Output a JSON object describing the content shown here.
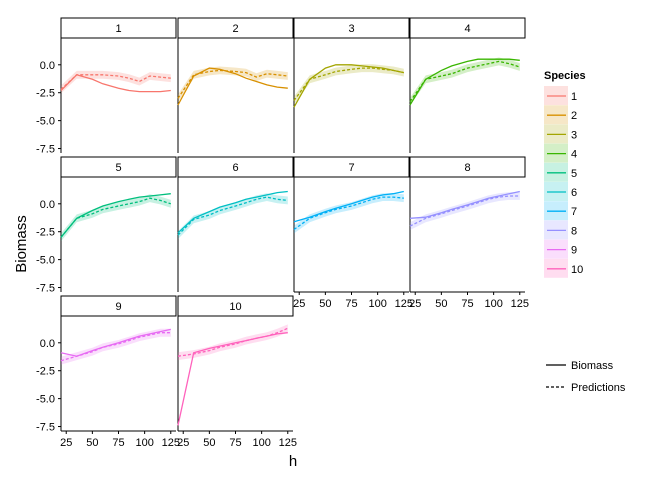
{
  "chart_data": {
    "type": "line",
    "xlabel": "h",
    "ylabel": "Biomass",
    "xlim": [
      20,
      130
    ],
    "ylim": [
      -7.9,
      2.4
    ],
    "x_ticks": [
      25,
      50,
      75,
      100,
      125
    ],
    "y_ticks": [
      0,
      -2.5,
      -5,
      -7.5
    ],
    "y_tick_labels": [
      "0.0",
      "-2.5",
      "-5.0",
      "-7.5"
    ],
    "legend_species_title": "Species",
    "legend_species": [
      "1",
      "2",
      "3",
      "4",
      "5",
      "6",
      "7",
      "8",
      "9",
      "10"
    ],
    "colors": [
      "#F8766D",
      "#D89000",
      "#A3A500",
      "#39B600",
      "#00BF7D",
      "#00BFC4",
      "#00B0F6",
      "#9590FF",
      "#E76BF3",
      "#FF62BC"
    ],
    "legend_linetype": [
      {
        "label": "Biomass",
        "dash": "solid"
      },
      {
        "label": "Predictions",
        "dash": "dotted"
      }
    ],
    "x": [
      20,
      35,
      50,
      60,
      75,
      85,
      95,
      105,
      115,
      125
    ],
    "panels": [
      {
        "label": "1",
        "biomass": [
          -2.3,
          -0.9,
          -1.3,
          -1.7,
          -2.1,
          -2.3,
          -2.4,
          -2.4,
          -2.4,
          -2.3
        ],
        "predictions": [
          -2.2,
          -0.9,
          -0.9,
          -0.9,
          -1.0,
          -1.2,
          -1.5,
          -1.0,
          -1.1,
          -1.2
        ]
      },
      {
        "label": "2",
        "biomass": [
          -3.6,
          -1.0,
          -0.3,
          -0.4,
          -0.8,
          -1.2,
          -1.5,
          -1.8,
          -2.0,
          -2.1
        ],
        "predictions": [
          -3.0,
          -0.9,
          -0.6,
          -0.5,
          -0.6,
          -0.7,
          -1.1,
          -0.8,
          -0.9,
          -1.0
        ]
      },
      {
        "label": "3",
        "biomass": [
          -3.8,
          -1.3,
          -0.3,
          0.0,
          0.0,
          -0.1,
          -0.2,
          -0.3,
          -0.5,
          -0.7
        ],
        "predictions": [
          -3.2,
          -1.3,
          -0.9,
          -0.6,
          -0.4,
          -0.3,
          -0.3,
          -0.4,
          -0.5,
          -0.7
        ]
      },
      {
        "label": "4",
        "biomass": [
          -3.6,
          -1.3,
          -0.5,
          -0.1,
          0.3,
          0.5,
          0.5,
          0.5,
          0.5,
          0.4
        ],
        "predictions": [
          -3.3,
          -1.3,
          -1.0,
          -0.8,
          -0.3,
          -0.1,
          0.1,
          0.3,
          0.1,
          -0.2
        ]
      },
      {
        "label": "5",
        "biomass": [
          -3.0,
          -1.3,
          -0.6,
          -0.2,
          0.2,
          0.4,
          0.6,
          0.7,
          0.8,
          0.9
        ],
        "predictions": [
          -3.0,
          -1.3,
          -0.9,
          -0.5,
          -0.2,
          0.0,
          0.2,
          0.5,
          0.3,
          0.0
        ]
      },
      {
        "label": "6",
        "biomass": [
          -2.6,
          -1.3,
          -0.7,
          -0.3,
          0.1,
          0.4,
          0.6,
          0.8,
          1.0,
          1.1
        ],
        "predictions": [
          -2.8,
          -1.4,
          -1.0,
          -0.6,
          -0.2,
          0.1,
          0.4,
          0.6,
          0.4,
          0.3
        ]
      },
      {
        "label": "7",
        "biomass": [
          -1.6,
          -1.2,
          -0.7,
          -0.4,
          0.0,
          0.3,
          0.6,
          0.8,
          0.9,
          1.1
        ],
        "predictions": [
          -2.3,
          -1.3,
          -0.8,
          -0.5,
          -0.2,
          0.1,
          0.4,
          0.6,
          0.6,
          0.5
        ]
      },
      {
        "label": "8",
        "biomass": [
          -1.3,
          -1.2,
          -0.8,
          -0.5,
          -0.1,
          0.2,
          0.5,
          0.7,
          0.9,
          1.1
        ],
        "predictions": [
          -2.0,
          -1.3,
          -0.9,
          -0.6,
          -0.2,
          0.1,
          0.4,
          0.6,
          0.7,
          0.7
        ]
      },
      {
        "label": "9",
        "biomass": [
          -0.9,
          -1.2,
          -0.7,
          -0.4,
          0.0,
          0.3,
          0.6,
          0.8,
          1.0,
          1.2
        ],
        "predictions": [
          -1.6,
          -1.2,
          -0.8,
          -0.4,
          -0.1,
          0.2,
          0.5,
          0.7,
          0.9,
          0.9
        ]
      },
      {
        "label": "10",
        "biomass": [
          -7.4,
          -0.9,
          -0.5,
          -0.3,
          0.0,
          0.2,
          0.4,
          0.6,
          0.8,
          0.9
        ],
        "predictions": [
          -1.2,
          -1.0,
          -0.7,
          -0.4,
          -0.1,
          0.2,
          0.4,
          0.6,
          0.9,
          1.3
        ]
      }
    ]
  }
}
